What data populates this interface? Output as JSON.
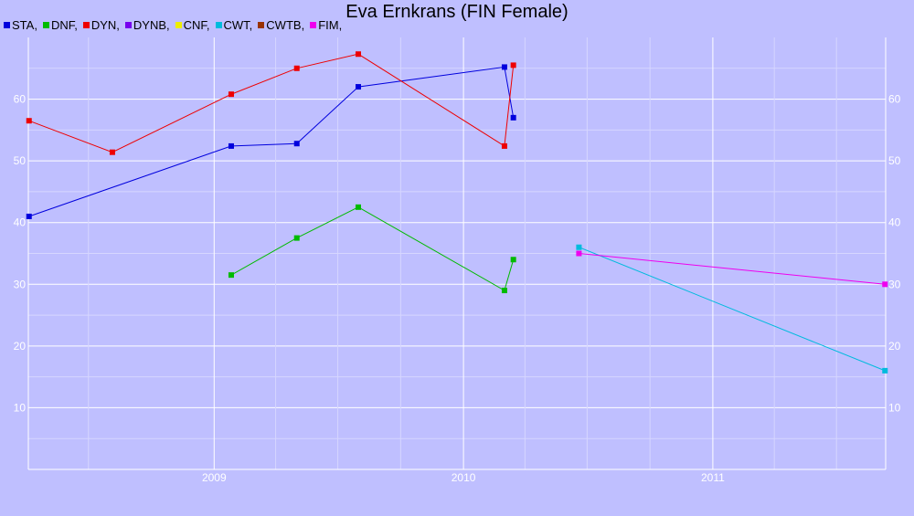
{
  "chart_data": {
    "type": "line",
    "title": "Eva Ernkrans (FIN Female)",
    "xlabel": "",
    "ylabel": "",
    "xlim": [
      "2008-04-04",
      "2011-09-11"
    ],
    "ylim": [
      0,
      70
    ],
    "y_ticks": [
      10,
      20,
      30,
      40,
      50,
      60
    ],
    "x_major_ticks": [
      "2009-01-01",
      "2010-01-01",
      "2011-01-01"
    ],
    "x_major_tick_labels": [
      "2009",
      "2010",
      "2011"
    ],
    "x_minor_ticks": [
      "2008-07-01",
      "2009-04-01",
      "2009-07-01",
      "2009-10-01",
      "2010-04-01",
      "2010-07-01",
      "2010-10-01",
      "2011-04-01",
      "2011-07-01"
    ],
    "grid": true,
    "legend_position": "top-left",
    "legend": [
      {
        "label": "STA,",
        "color": "#0000dd"
      },
      {
        "label": "DNF,",
        "color": "#00bb00"
      },
      {
        "label": "DYN,",
        "color": "#ee0000"
      },
      {
        "label": "DYNB,",
        "color": "#7700ee"
      },
      {
        "label": "CNF,",
        "color": "#eeee00"
      },
      {
        "label": "CWT,",
        "color": "#00bbdd"
      },
      {
        "label": "CWTB,",
        "color": "#993300"
      },
      {
        "label": "FIM,",
        "color": "#ee00ee"
      }
    ],
    "series": [
      {
        "name": "STA",
        "color": "#0000dd",
        "points": [
          [
            "2008-04-05",
            41
          ],
          [
            "2009-01-26",
            52.4
          ],
          [
            "2009-05-02",
            52.8
          ],
          [
            "2009-07-31",
            62
          ],
          [
            "2010-03-02",
            65.2
          ],
          [
            "2010-03-15",
            57
          ]
        ]
      },
      {
        "name": "DNF",
        "color": "#00bb00",
        "points": [
          [
            "2009-01-26",
            31.5
          ],
          [
            "2009-05-02",
            37.5
          ],
          [
            "2009-07-31",
            42.5
          ],
          [
            "2010-03-02",
            29
          ],
          [
            "2010-03-15",
            34
          ]
        ]
      },
      {
        "name": "DYN",
        "color": "#ee0000",
        "points": [
          [
            "2008-04-05",
            56.5
          ],
          [
            "2008-08-05",
            51.4
          ],
          [
            "2009-01-26",
            60.8
          ],
          [
            "2009-05-02",
            65
          ],
          [
            "2009-07-31",
            67.3
          ],
          [
            "2010-03-02",
            52.4
          ],
          [
            "2010-03-15",
            65.5
          ]
        ]
      },
      {
        "name": "CWT",
        "color": "#00bbdd",
        "points": [
          [
            "2010-06-19",
            36
          ],
          [
            "2011-09-10",
            16
          ]
        ]
      },
      {
        "name": "FIM",
        "color": "#ee00ee",
        "points": [
          [
            "2010-06-19",
            35
          ],
          [
            "2011-09-10",
            30
          ]
        ]
      }
    ]
  }
}
